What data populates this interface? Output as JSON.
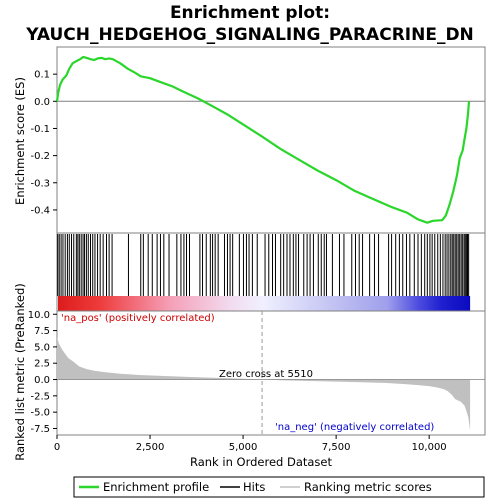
{
  "chart_data": {
    "type": "line",
    "title_line1": "Enrichment plot:",
    "title_line2": "YAUCH_HEDGEHOG_SIGNALING_PARACRINE_DN",
    "xlabel": "Rank in Ordered Dataset",
    "ylabel_top": "Enrichment score (ES)",
    "ylabel_bottom": "Ranked list metric (PreRanked)",
    "xlim": [
      0,
      11500
    ],
    "x_ticks": [
      0,
      2500,
      5000,
      7500,
      10000
    ],
    "x_tick_labels": [
      "0",
      "2,500",
      "5,000",
      "7,500",
      "10,000"
    ],
    "es_ylim": [
      -0.485,
      0.2
    ],
    "es_ticks": [
      0.1,
      0.0,
      -0.1,
      -0.2,
      -0.3,
      -0.4
    ],
    "es_tick_labels": [
      "0.1",
      "0.0",
      "-0.1",
      "-0.2",
      "-0.3",
      "-0.4"
    ],
    "metric_ylim": [
      -8.5,
      10.5
    ],
    "metric_ticks": [
      10.0,
      7.5,
      5.0,
      2.5,
      0.0,
      -2.5,
      -5.0,
      -7.5
    ],
    "metric_tick_labels": [
      "10.0",
      "7.5",
      "5.0",
      "2.5",
      "0.0",
      "-2.5",
      "-5.0",
      "-7.5"
    ],
    "n_genes": 11100,
    "zero_cross": 5510,
    "zero_cross_label": "Zero cross at 5510",
    "pos_label": "'na_pos' (positively correlated)",
    "neg_label": "'na_neg' (negatively correlated)",
    "es_curve": [
      [
        0,
        0.0
      ],
      [
        30,
        0.03
      ],
      [
        80,
        0.06
      ],
      [
        150,
        0.08
      ],
      [
        250,
        0.095
      ],
      [
        330,
        0.12
      ],
      [
        420,
        0.14
      ],
      [
        520,
        0.148
      ],
      [
        620,
        0.155
      ],
      [
        700,
        0.163
      ],
      [
        800,
        0.16
      ],
      [
        900,
        0.155
      ],
      [
        1000,
        0.152
      ],
      [
        1100,
        0.158
      ],
      [
        1200,
        0.16
      ],
      [
        1300,
        0.155
      ],
      [
        1400,
        0.158
      ],
      [
        1500,
        0.155
      ],
      [
        1700,
        0.14
      ],
      [
        1900,
        0.12
      ],
      [
        2100,
        0.105
      ],
      [
        2250,
        0.092
      ],
      [
        2500,
        0.085
      ],
      [
        2800,
        0.07
      ],
      [
        3100,
        0.055
      ],
      [
        3400,
        0.035
      ],
      [
        3800,
        0.01
      ],
      [
        4200,
        -0.02
      ],
      [
        4600,
        -0.05
      ],
      [
        5000,
        -0.085
      ],
      [
        5510,
        -0.13
      ],
      [
        6000,
        -0.175
      ],
      [
        6500,
        -0.215
      ],
      [
        7000,
        -0.255
      ],
      [
        7500,
        -0.29
      ],
      [
        8000,
        -0.33
      ],
      [
        8500,
        -0.36
      ],
      [
        9000,
        -0.39
      ],
      [
        9400,
        -0.41
      ],
      [
        9700,
        -0.435
      ],
      [
        9950,
        -0.447
      ],
      [
        10100,
        -0.44
      ],
      [
        10350,
        -0.438
      ],
      [
        10450,
        -0.42
      ],
      [
        10550,
        -0.38
      ],
      [
        10650,
        -0.33
      ],
      [
        10750,
        -0.27
      ],
      [
        10820,
        -0.21
      ],
      [
        10900,
        -0.18
      ],
      [
        10950,
        -0.14
      ],
      [
        11000,
        -0.1
      ],
      [
        11040,
        -0.05
      ],
      [
        11070,
        0.0
      ]
    ],
    "hit_positions": [
      20,
      60,
      110,
      160,
      220,
      280,
      330,
      390,
      450,
      520,
      560,
      600,
      650,
      700,
      740,
      790,
      840,
      900,
      960,
      1020,
      1090,
      1160,
      1240,
      1330,
      1400,
      1480,
      1920,
      2250,
      2320,
      2450,
      2560,
      2690,
      2780,
      2870,
      3010,
      3220,
      3330,
      3410,
      3480,
      3560,
      3840,
      3910,
      4010,
      4120,
      4180,
      4250,
      4330,
      4500,
      4580,
      4650,
      4720,
      4900,
      5010,
      5090,
      5160,
      5250,
      5380,
      5590,
      5690,
      5790,
      5870,
      6010,
      6090,
      6180,
      6260,
      6350,
      6420,
      6490,
      6630,
      6720,
      6800,
      6890,
      7020,
      7100,
      7180,
      7240,
      7400,
      7590,
      7710,
      7920,
      8020,
      8120,
      8210,
      8400,
      8530,
      8640,
      8910,
      8990,
      9100,
      9200,
      9290,
      9390,
      9480,
      9600,
      9700,
      9790,
      9880,
      9950,
      10020,
      10080,
      10150,
      10230,
      10300,
      10370,
      10430,
      10480,
      10530,
      10580,
      10620,
      10660,
      10700,
      10740,
      10780,
      10820,
      10860,
      10900,
      10940,
      10970,
      11000,
      11030,
      11060
    ],
    "metric_curve": [
      [
        0,
        6.5
      ],
      [
        50,
        5.5
      ],
      [
        150,
        4.5
      ],
      [
        300,
        3.3
      ],
      [
        450,
        2.7
      ],
      [
        600,
        2.0
      ],
      [
        800,
        1.6
      ],
      [
        1000,
        1.35
      ],
      [
        1300,
        1.1
      ],
      [
        1700,
        0.9
      ],
      [
        2200,
        0.7
      ],
      [
        2800,
        0.55
      ],
      [
        3500,
        0.4
      ],
      [
        4200,
        0.27
      ],
      [
        4800,
        0.15
      ],
      [
        5300,
        0.05
      ],
      [
        5510,
        0.0
      ],
      [
        6000,
        -0.12
      ],
      [
        6800,
        -0.22
      ],
      [
        7500,
        -0.32
      ],
      [
        8200,
        -0.42
      ],
      [
        8800,
        -0.52
      ],
      [
        9300,
        -0.68
      ],
      [
        9700,
        -0.85
      ],
      [
        10000,
        -1.0
      ],
      [
        10200,
        -1.2
      ],
      [
        10400,
        -1.5
      ],
      [
        10500,
        -1.8
      ],
      [
        10600,
        -2.3
      ],
      [
        10700,
        -3.0
      ],
      [
        10850,
        -3.4
      ],
      [
        10950,
        -4.0
      ],
      [
        11000,
        -4.8
      ],
      [
        11050,
        -5.8
      ],
      [
        11100,
        -7.8
      ]
    ],
    "colors": {
      "es_line": "#2bd62b",
      "hits": "#000000",
      "metric_fill": "#c0c0c0",
      "pos_text": "#cc0000",
      "neg_text": "#0000cc",
      "frame": "#808080",
      "zero_line": "#808080"
    }
  },
  "legend": {
    "items": [
      {
        "label": "Enrichment profile",
        "icon": "green-line-icon"
      },
      {
        "label": "Hits",
        "icon": "black-line-icon"
      },
      {
        "label": "Ranking metric scores",
        "icon": "gray-line-icon"
      }
    ]
  }
}
